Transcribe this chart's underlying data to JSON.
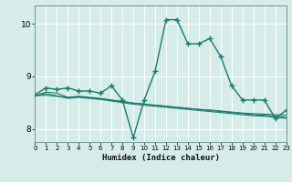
{
  "xlabel": "Humidex (Indice chaleur)",
  "background_color": "#d6ece9",
  "grid_color": "#ffffff",
  "line_color": "#1a7a6e",
  "xlim": [
    0,
    23
  ],
  "ylim": [
    7.75,
    10.35
  ],
  "yticks": [
    8,
    9,
    10
  ],
  "xticks": [
    0,
    1,
    2,
    3,
    4,
    5,
    6,
    7,
    8,
    9,
    10,
    11,
    12,
    13,
    14,
    15,
    16,
    17,
    18,
    19,
    20,
    21,
    22,
    23
  ],
  "series": [
    {
      "x": [
        0,
        1,
        2,
        3,
        4,
        5,
        6,
        7,
        8,
        9,
        10,
        11,
        12,
        13,
        14,
        15,
        16,
        17,
        18,
        19,
        20,
        21,
        22,
        23
      ],
      "y": [
        8.65,
        8.78,
        8.75,
        8.78,
        8.72,
        8.72,
        8.68,
        8.82,
        8.55,
        7.83,
        8.55,
        9.1,
        10.08,
        10.08,
        9.62,
        9.62,
        9.72,
        9.38,
        8.82,
        8.55,
        8.55,
        8.55,
        8.2,
        8.35
      ],
      "marker": true,
      "linewidth": 1.0
    },
    {
      "x": [
        0,
        1,
        2,
        3,
        4,
        5,
        6,
        7,
        8,
        9,
        10,
        11,
        12,
        13,
        14,
        15,
        16,
        17,
        18,
        19,
        20,
        21,
        22,
        23
      ],
      "y": [
        8.63,
        8.7,
        8.68,
        8.6,
        8.61,
        8.59,
        8.57,
        8.54,
        8.52,
        8.49,
        8.47,
        8.45,
        8.43,
        8.41,
        8.39,
        8.37,
        8.35,
        8.33,
        8.31,
        8.29,
        8.27,
        8.26,
        8.24,
        8.22
      ],
      "marker": false,
      "linewidth": 0.8
    },
    {
      "x": [
        0,
        1,
        2,
        3,
        4,
        5,
        6,
        7,
        8,
        9,
        10,
        11,
        12,
        13,
        14,
        15,
        16,
        17,
        18,
        19,
        20,
        21,
        22,
        23
      ],
      "y": [
        8.63,
        8.67,
        8.63,
        8.58,
        8.6,
        8.58,
        8.56,
        8.53,
        8.5,
        8.47,
        8.45,
        8.43,
        8.41,
        8.39,
        8.37,
        8.35,
        8.33,
        8.31,
        8.29,
        8.27,
        8.25,
        8.24,
        8.22,
        8.2
      ],
      "marker": false,
      "linewidth": 0.8
    },
    {
      "x": [
        0,
        1,
        2,
        3,
        4,
        5,
        6,
        7,
        8,
        9,
        10,
        11,
        12,
        13,
        14,
        15,
        16,
        17,
        18,
        19,
        20,
        21,
        22,
        23
      ],
      "y": [
        8.63,
        8.64,
        8.62,
        8.6,
        8.62,
        8.6,
        8.58,
        8.55,
        8.52,
        8.49,
        8.47,
        8.45,
        8.43,
        8.41,
        8.39,
        8.37,
        8.36,
        8.34,
        8.32,
        8.3,
        8.29,
        8.28,
        8.27,
        8.26
      ],
      "marker": false,
      "linewidth": 0.8
    }
  ]
}
